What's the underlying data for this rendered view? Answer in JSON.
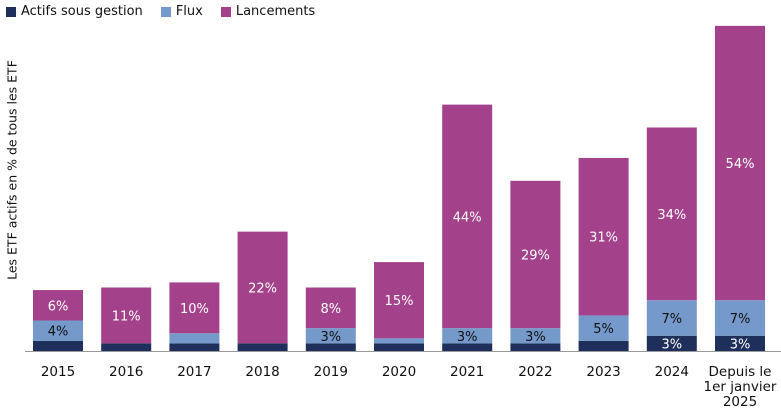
{
  "chart_data": {
    "type": "bar",
    "stacked": true,
    "title": "",
    "xlabel": "",
    "ylabel": "Les ETF actifs en % de tous les ETF",
    "ylim": [
      0,
      64
    ],
    "grid": false,
    "legend_position": "top-left",
    "categories": [
      "2015",
      "2016",
      "2017",
      "2018",
      "2019",
      "2020",
      "2021",
      "2022",
      "2023",
      "2024",
      "Depuis le 1er janvier 2025"
    ],
    "series": [
      {
        "name": "Actifs sous gestion",
        "color": "#1f2f5c",
        "values": [
          2,
          1.5,
          1.5,
          1.5,
          1.5,
          1.5,
          1.5,
          1.5,
          2,
          3,
          3
        ],
        "labels": [
          "",
          "",
          "",
          "",
          "",
          "",
          "",
          "",
          "",
          "3%",
          "3%"
        ]
      },
      {
        "name": "Flux",
        "color": "#7599cb",
        "values": [
          4,
          0,
          2,
          0,
          3,
          1,
          3,
          3,
          5,
          7,
          7
        ],
        "labels": [
          "4%",
          "",
          "",
          "",
          "3%",
          "",
          "3%",
          "3%",
          "5%",
          "7%",
          "7%"
        ]
      },
      {
        "name": "Lancements",
        "color": "#a3428b",
        "values": [
          6,
          11,
          10,
          22,
          8,
          15,
          44,
          29,
          31,
          34,
          54
        ],
        "labels": [
          "6%",
          "11%",
          "10%",
          "22%",
          "8%",
          "15%",
          "44%",
          "29%",
          "31%",
          "34%",
          "54%"
        ]
      }
    ]
  }
}
